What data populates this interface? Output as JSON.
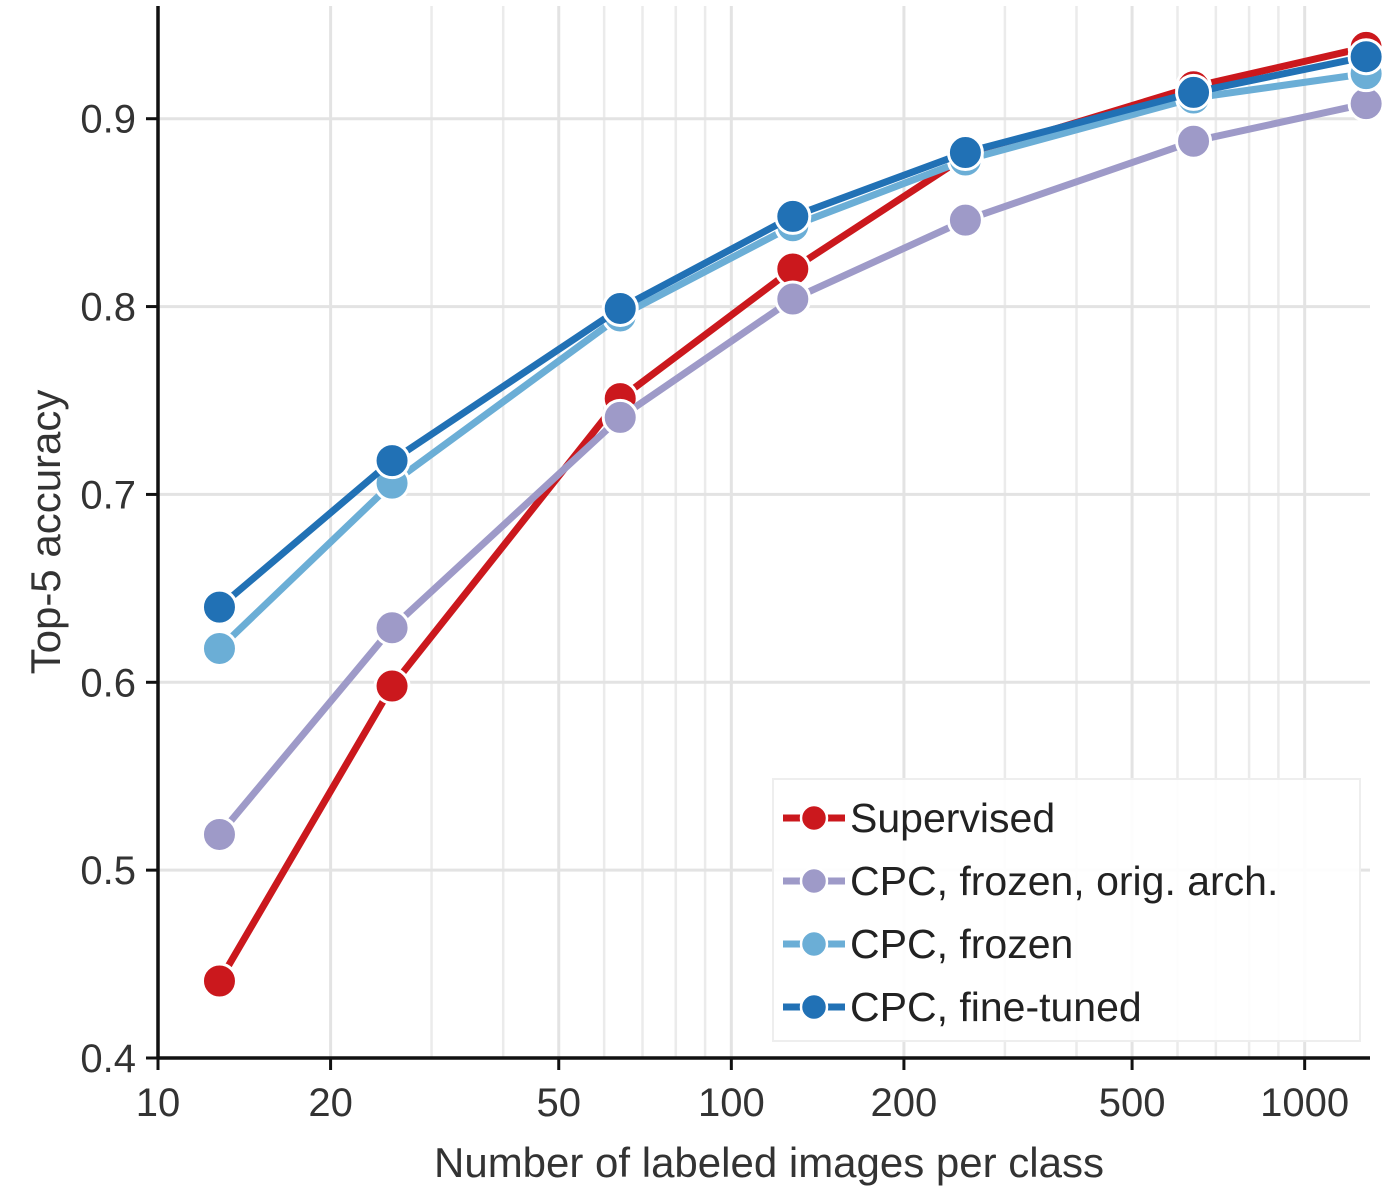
{
  "chart_data": {
    "type": "line",
    "xscale": "log",
    "xlabel": "Number of labeled images per class",
    "ylabel": "Top-5 accuracy",
    "xlim": [
      10,
      1300
    ],
    "ylim": [
      0.4,
      0.96
    ],
    "x_ticks": [
      10,
      20,
      50,
      100,
      200,
      500,
      1000
    ],
    "x_tick_labels": [
      "10",
      "20",
      "50",
      "100",
      "200",
      "500",
      "1000"
    ],
    "y_ticks": [
      0.4,
      0.5,
      0.6,
      0.7,
      0.8,
      0.9
    ],
    "y_tick_labels": [
      "0.4",
      "0.5",
      "0.6",
      "0.7",
      "0.8",
      "0.9"
    ],
    "grid": true,
    "legend_position": "bottom-right",
    "x": [
      12.8,
      25.6,
      64,
      128,
      256,
      640,
      1280
    ],
    "series": [
      {
        "name": "Supervised",
        "color": "#cb181d",
        "values": [
          0.441,
          0.598,
          0.751,
          0.82,
          0.88,
          0.917,
          0.938
        ]
      },
      {
        "name": "CPC, frozen, orig. arch.",
        "color": "#9e9ac8",
        "values": [
          0.519,
          0.629,
          0.741,
          0.804,
          0.846,
          0.888,
          0.908
        ]
      },
      {
        "name": "CPC, frozen",
        "color": "#6baed6",
        "values": [
          0.618,
          0.706,
          0.795,
          0.843,
          0.878,
          0.911,
          0.924
        ]
      },
      {
        "name": "CPC, fine-tuned",
        "color": "#2171b5",
        "values": [
          0.64,
          0.718,
          0.799,
          0.848,
          0.882,
          0.914,
          0.933
        ]
      }
    ]
  }
}
